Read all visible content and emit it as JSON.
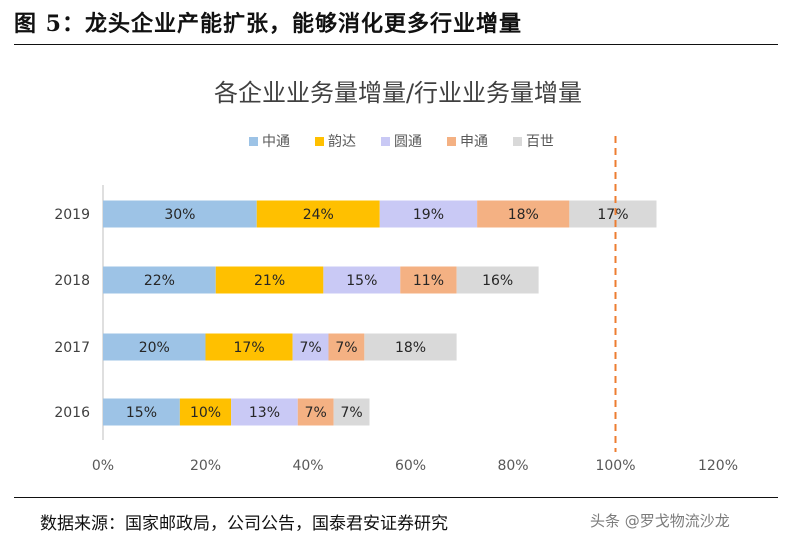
{
  "figure": {
    "title": "图 5：龙头企业产能扩张，能够消化更多行业增量",
    "source": "数据来源：国家邮政局，公司公告，国泰君安证券研究",
    "watermark": "头条 @罗戈物流沙龙"
  },
  "chart_data": {
    "type": "bar",
    "stacked": true,
    "orientation": "horizontal",
    "title": "各企业业务量增量/行业业务量增量",
    "categories": [
      "2016",
      "2017",
      "2018",
      "2019"
    ],
    "series": [
      {
        "name": "中通",
        "color": "#9DC3E6",
        "values": [
          15,
          20,
          22,
          30
        ],
        "labels": [
          "15%",
          "20%",
          "22%",
          "30%"
        ]
      },
      {
        "name": "韵达",
        "color": "#FFC000",
        "values": [
          10,
          17,
          21,
          24
        ],
        "labels": [
          "10%",
          "17%",
          "21%",
          "24%"
        ]
      },
      {
        "name": "圆通",
        "color": "#C9C9F5",
        "values": [
          13,
          7,
          15,
          19
        ],
        "labels": [
          "13%",
          "7%",
          "15%",
          "19%"
        ]
      },
      {
        "name": "申通",
        "color": "#F4B183",
        "values": [
          7,
          7,
          11,
          18
        ],
        "labels": [
          "7%",
          "7%",
          "11%",
          "18%"
        ]
      },
      {
        "name": "百世",
        "color": "#D9D9D9",
        "values": [
          7,
          18,
          16,
          17
        ],
        "labels": [
          "7%",
          "18%",
          "16%",
          "17%"
        ]
      }
    ],
    "xlim": [
      0,
      120
    ],
    "xticks": [
      0,
      20,
      40,
      60,
      80,
      100,
      120
    ],
    "xtick_labels": [
      "0%",
      "20%",
      "40%",
      "60%",
      "80%",
      "100%",
      "120%"
    ],
    "reference_line": {
      "value": 100,
      "color": "#ED7D31",
      "style": "dashed"
    },
    "legend_position": "top-center",
    "grid": false
  }
}
